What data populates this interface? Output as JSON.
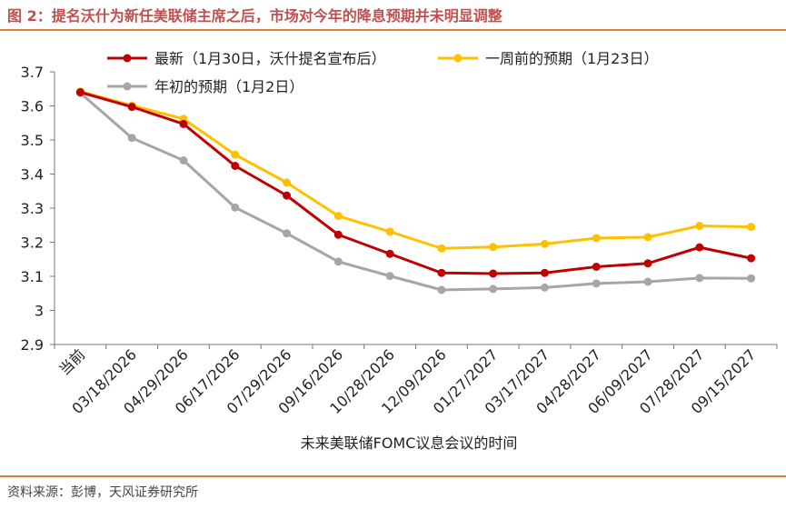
{
  "figure": {
    "title": "图 2：提名沃什为新任美联储主席之后，市场对今年的降息预期并未明显调整",
    "source": "资料来源：彭博，天风证券研究所"
  },
  "chart_data": {
    "type": "line",
    "xlabel": "未来美联储FOMC议息会议的时间",
    "ylabel": "",
    "ylim": [
      2.9,
      3.7
    ],
    "yticks": [
      2.9,
      3.0,
      3.1,
      3.2,
      3.3,
      3.4,
      3.5,
      3.6,
      3.7
    ],
    "ytick_labels": [
      "2.9",
      "3",
      "3.1",
      "3.2",
      "3.3",
      "3.4",
      "3.5",
      "3.6",
      "3.7"
    ],
    "categories": [
      "当前",
      "03/18/2026",
      "04/29/2026",
      "06/17/2026",
      "07/29/2026",
      "09/16/2026",
      "10/28/2026",
      "12/09/2026",
      "01/27/2027",
      "03/17/2027",
      "04/28/2027",
      "06/09/2027",
      "07/28/2027",
      "09/15/2027"
    ],
    "grid": false,
    "legend_position": "top",
    "series": [
      {
        "name": "最新（1月30日，沃什提名宣布后）",
        "color": "#c00000",
        "values": [
          3.64,
          3.597,
          3.547,
          3.424,
          3.337,
          3.222,
          3.166,
          3.11,
          3.108,
          3.11,
          3.128,
          3.138,
          3.185,
          3.153
        ]
      },
      {
        "name": "一周前的预期（1月23日）",
        "color": "#ffc000",
        "values": [
          3.642,
          3.601,
          3.562,
          3.457,
          3.375,
          3.277,
          3.231,
          3.182,
          3.186,
          3.195,
          3.212,
          3.215,
          3.248,
          3.245
        ]
      },
      {
        "name": "年初的预期（1月2日）",
        "color": "#a6a6a6",
        "values": [
          3.638,
          3.506,
          3.44,
          3.302,
          3.226,
          3.143,
          3.101,
          3.06,
          3.063,
          3.067,
          3.079,
          3.084,
          3.095,
          3.094
        ]
      }
    ]
  }
}
